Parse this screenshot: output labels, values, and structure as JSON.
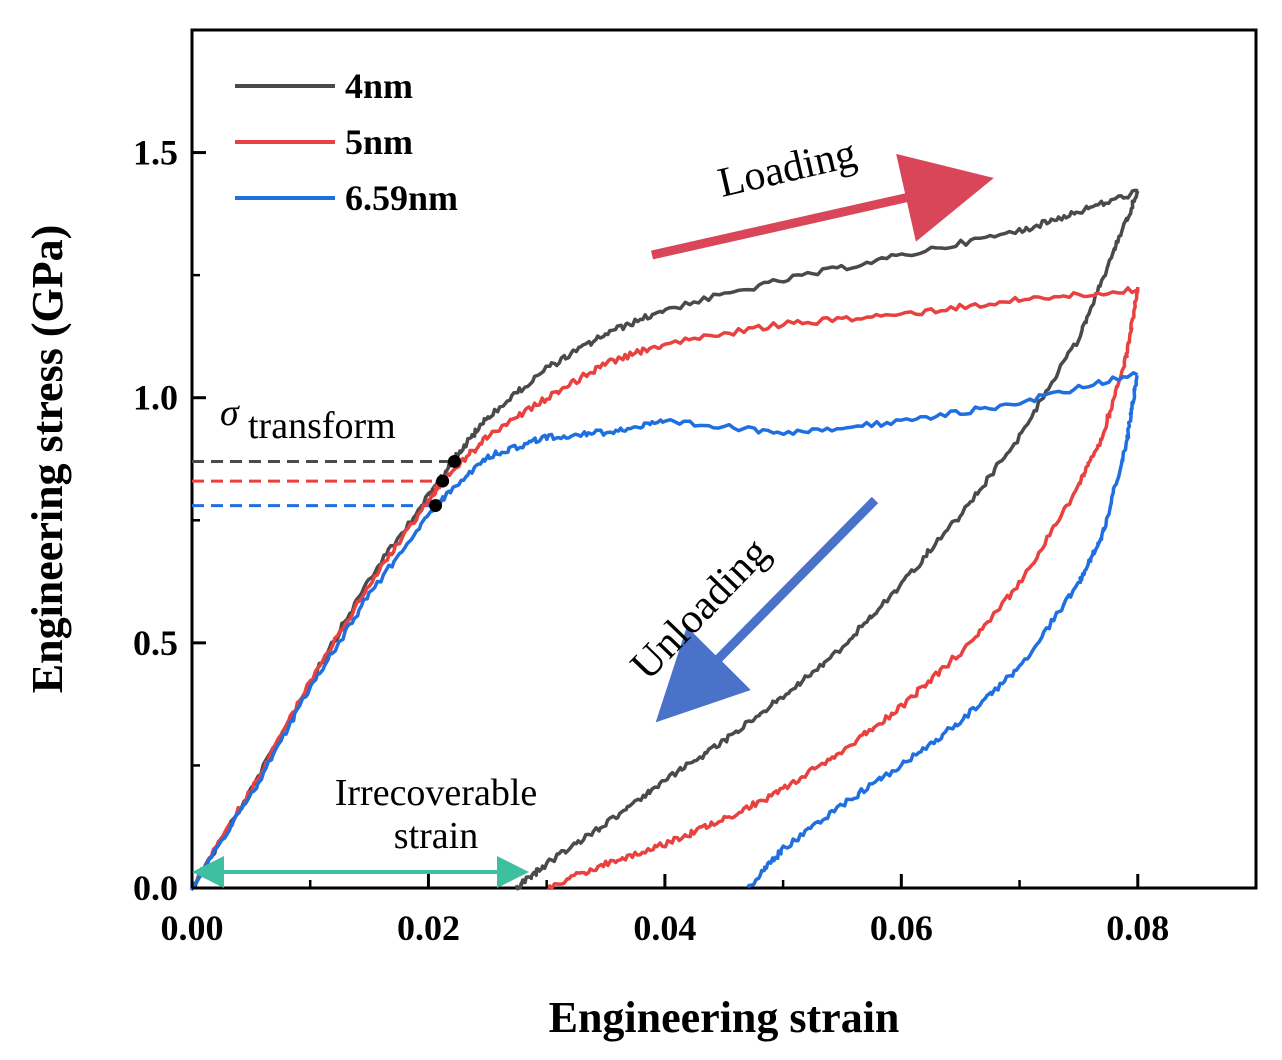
{
  "chart_data": {
    "type": "line",
    "xlabel": "Engineering strain",
    "ylabel": "Engineering stress (GPa)",
    "xlim": [
      0.0,
      0.09
    ],
    "ylim": [
      0.0,
      1.75
    ],
    "x_ticks": [
      "0.00",
      "0.02",
      "0.04",
      "0.06",
      "0.08"
    ],
    "x_tick_values": [
      0.0,
      0.02,
      0.04,
      0.06,
      0.08
    ],
    "y_ticks": [
      "0.0",
      "0.5",
      "1.0",
      "1.5"
    ],
    "y_tick_values": [
      0.0,
      0.5,
      1.0,
      1.5
    ],
    "legend_placement": "top-left",
    "grid": false,
    "series": [
      {
        "name": "4nm",
        "color": "#4a4a4a",
        "transform_strain": 0.0222,
        "transform_stress": 0.87,
        "loading": [
          [
            0.0,
            0.0
          ],
          [
            0.005,
            0.2
          ],
          [
            0.01,
            0.42
          ],
          [
            0.015,
            0.63
          ],
          [
            0.02,
            0.8
          ],
          [
            0.022,
            0.87
          ],
          [
            0.025,
            0.96
          ],
          [
            0.03,
            1.06
          ],
          [
            0.035,
            1.13
          ],
          [
            0.04,
            1.18
          ],
          [
            0.05,
            1.24
          ],
          [
            0.06,
            1.29
          ],
          [
            0.07,
            1.34
          ],
          [
            0.075,
            1.38
          ],
          [
            0.08,
            1.42
          ]
        ],
        "unloading": [
          [
            0.08,
            1.42
          ],
          [
            0.078,
            1.3
          ],
          [
            0.075,
            1.12
          ],
          [
            0.07,
            0.92
          ],
          [
            0.065,
            0.76
          ],
          [
            0.06,
            0.62
          ],
          [
            0.055,
            0.49
          ],
          [
            0.05,
            0.39
          ],
          [
            0.045,
            0.3
          ],
          [
            0.04,
            0.22
          ],
          [
            0.035,
            0.13
          ],
          [
            0.03,
            0.05
          ],
          [
            0.0275,
            0.0
          ]
        ]
      },
      {
        "name": "5nm",
        "color": "#e8413f",
        "transform_strain": 0.0212,
        "transform_stress": 0.83,
        "loading": [
          [
            0.0,
            0.0
          ],
          [
            0.005,
            0.2
          ],
          [
            0.01,
            0.42
          ],
          [
            0.015,
            0.62
          ],
          [
            0.02,
            0.79
          ],
          [
            0.0212,
            0.83
          ],
          [
            0.025,
            0.92
          ],
          [
            0.03,
            1.0
          ],
          [
            0.035,
            1.07
          ],
          [
            0.04,
            1.11
          ],
          [
            0.05,
            1.15
          ],
          [
            0.06,
            1.17
          ],
          [
            0.07,
            1.2
          ],
          [
            0.08,
            1.22
          ]
        ],
        "unloading": [
          [
            0.08,
            1.22
          ],
          [
            0.079,
            1.08
          ],
          [
            0.077,
            0.92
          ],
          [
            0.075,
            0.82
          ],
          [
            0.07,
            0.62
          ],
          [
            0.065,
            0.48
          ],
          [
            0.06,
            0.37
          ],
          [
            0.055,
            0.28
          ],
          [
            0.05,
            0.2
          ],
          [
            0.045,
            0.14
          ],
          [
            0.04,
            0.09
          ],
          [
            0.035,
            0.05
          ],
          [
            0.03,
            0.0
          ]
        ]
      },
      {
        "name": "6.59nm",
        "color": "#1f6fe0",
        "transform_strain": 0.0206,
        "transform_stress": 0.78,
        "loading": [
          [
            0.0,
            0.0
          ],
          [
            0.005,
            0.19
          ],
          [
            0.01,
            0.41
          ],
          [
            0.015,
            0.6
          ],
          [
            0.0206,
            0.78
          ],
          [
            0.025,
            0.88
          ],
          [
            0.03,
            0.92
          ],
          [
            0.035,
            0.93
          ],
          [
            0.04,
            0.95
          ],
          [
            0.05,
            0.93
          ],
          [
            0.06,
            0.95
          ],
          [
            0.07,
            0.99
          ],
          [
            0.08,
            1.05
          ]
        ],
        "unloading": [
          [
            0.08,
            1.05
          ],
          [
            0.079,
            0.9
          ],
          [
            0.077,
            0.72
          ],
          [
            0.075,
            0.62
          ],
          [
            0.07,
            0.45
          ],
          [
            0.065,
            0.34
          ],
          [
            0.06,
            0.25
          ],
          [
            0.055,
            0.17
          ],
          [
            0.05,
            0.08
          ],
          [
            0.047,
            0.0
          ]
        ]
      }
    ],
    "annotations": {
      "sigma": "σ",
      "transform": "transform",
      "loading": "Loading",
      "unloading": "Unloading",
      "irrecoverable_line1": "Irrecoverable",
      "irrecoverable_line2": "strain",
      "irrecoverable_range": [
        0.0,
        0.0285
      ],
      "loading_arrow_color": "#d9465a",
      "unloading_arrow_color": "#4a72c8",
      "irrecoverable_arrow_color": "#3dbfa0"
    }
  }
}
